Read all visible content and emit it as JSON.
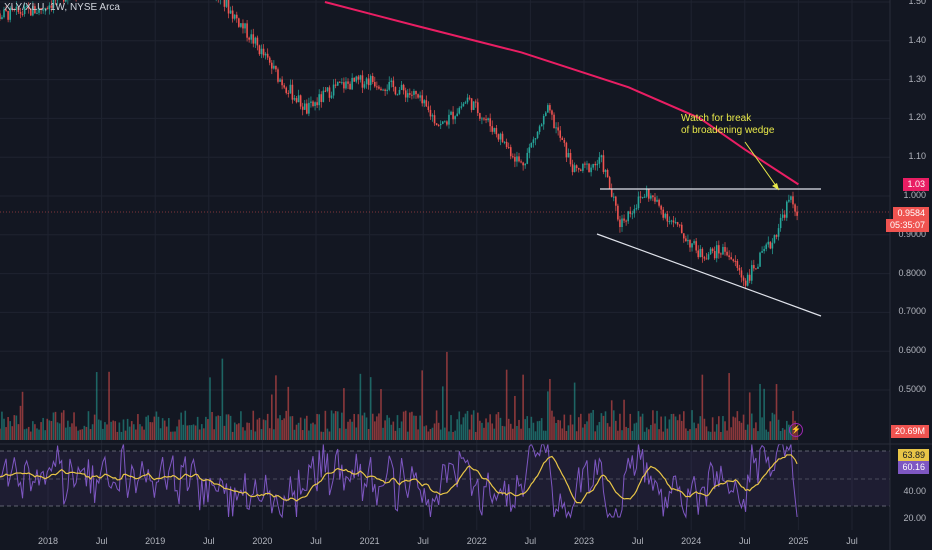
{
  "title": "XLY/XLU, 1W, NYSE Arca",
  "annotation": "Watch for break\nof broadening wedge",
  "colors": {
    "bg": "#131722",
    "up": "#26a69a",
    "down": "#ef5350",
    "ma": "#e91e63",
    "rsi": "#7e57c2",
    "rsi_ma": "#e8c547",
    "white": "#d1d4dc"
  },
  "price_axis": [
    "1.50",
    "1.40",
    "1.30",
    "1.20",
    "1.10",
    "1.000",
    "0.9000",
    "0.8000",
    "0.7000",
    "0.6000",
    "0.5000"
  ],
  "rsi_axis": [
    "40.00",
    "20.00"
  ],
  "time_axis": [
    "2018",
    "Jul",
    "2019",
    "Jul",
    "2020",
    "Jul",
    "2021",
    "Jul",
    "2022",
    "Jul",
    "2023",
    "Jul",
    "2024",
    "Jul",
    "2025",
    "Jul"
  ],
  "tags": {
    "level": "1.03",
    "last_price": "0.9584",
    "countdown": "05:35:07",
    "volume": "20.69M",
    "rsi_ma": "63.89",
    "rsi": "60.16"
  },
  "chart_data": {
    "type": "candlestick",
    "title": "XLY/XLU, 1W, NYSE Arca",
    "x_range": [
      "2017-06",
      "2025-07"
    ],
    "y_range": [
      0.5,
      1.5
    ],
    "ma_series": [
      {
        "x": "2020-08",
        "y": 1.5
      },
      {
        "x": "2021-06",
        "y": 1.44
      },
      {
        "x": "2022-06",
        "y": 1.37
      },
      {
        "x": "2023-06",
        "y": 1.28
      },
      {
        "x": "2024-02",
        "y": 1.2
      },
      {
        "x": "2024-07",
        "y": 1.12
      },
      {
        "x": "2025-01",
        "y": 1.03
      }
    ],
    "price_path": [
      {
        "x": "2017-06",
        "y": 1.46
      },
      {
        "x": "2017-12",
        "y": 1.48
      },
      {
        "x": "2018-03",
        "y": 1.52
      },
      {
        "x": "2019-06",
        "y": 1.56
      },
      {
        "x": "2019-09",
        "y": 1.49
      },
      {
        "x": "2019-12",
        "y": 1.4
      },
      {
        "x": "2020-03",
        "y": 1.3
      },
      {
        "x": "2020-06",
        "y": 1.22
      },
      {
        "x": "2020-09",
        "y": 1.28
      },
      {
        "x": "2021-01",
        "y": 1.3
      },
      {
        "x": "2021-06",
        "y": 1.26
      },
      {
        "x": "2021-09",
        "y": 1.18
      },
      {
        "x": "2021-12",
        "y": 1.25
      },
      {
        "x": "2022-03",
        "y": 1.17
      },
      {
        "x": "2022-06",
        "y": 1.08
      },
      {
        "x": "2022-09",
        "y": 1.22
      },
      {
        "x": "2022-12",
        "y": 1.06
      },
      {
        "x": "2023-03",
        "y": 1.09
      },
      {
        "x": "2023-05",
        "y": 0.93
      },
      {
        "x": "2023-08",
        "y": 1.01
      },
      {
        "x": "2023-11",
        "y": 0.93
      },
      {
        "x": "2024-02",
        "y": 0.85
      },
      {
        "x": "2024-05",
        "y": 0.86
      },
      {
        "x": "2024-07",
        "y": 0.78
      },
      {
        "x": "2024-10",
        "y": 0.88
      },
      {
        "x": "2024-12",
        "y": 0.99
      },
      {
        "x": "2025-01",
        "y": 0.958
      }
    ],
    "resistance_line": {
      "y": 1.015,
      "x_from": "2023-03",
      "x_to": "2025-02"
    },
    "support_line": {
      "from": {
        "x": "2023-03",
        "y": 0.905
      },
      "to": {
        "x": "2025-04",
        "y": 0.69
      }
    },
    "rsi": {
      "last": 60.16,
      "ma_last": 63.89
    },
    "volume_last": "20.69M"
  }
}
